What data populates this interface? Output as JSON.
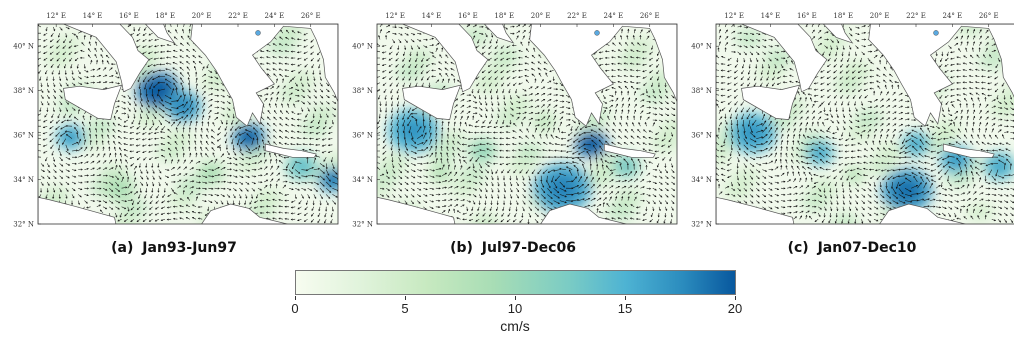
{
  "panels": [
    {
      "letter": "(a)",
      "period": "Jan93-Jun97"
    },
    {
      "letter": "(b)",
      "period": "Jul97-Dec06"
    },
    {
      "letter": "(c)",
      "period": "Jan07-Dec10"
    }
  ],
  "lon_ticks": [
    "12° E",
    "14° E",
    "16° E",
    "18° E",
    "20° E",
    "22° E",
    "24° E",
    "26° E"
  ],
  "lat_ticks": [
    "40° N",
    "38° N",
    "36° N",
    "34° N",
    "32° N"
  ],
  "colorbar": {
    "ticks": [
      "0",
      "5",
      "10",
      "15",
      "20"
    ],
    "unit": "cm/s",
    "min": 0,
    "max": 20
  },
  "colors": {
    "sea_low": "#f7fcf0",
    "sea_high": "#08589e",
    "land": "#ffffff",
    "coast": "#555555",
    "arrow": "#111111"
  }
}
